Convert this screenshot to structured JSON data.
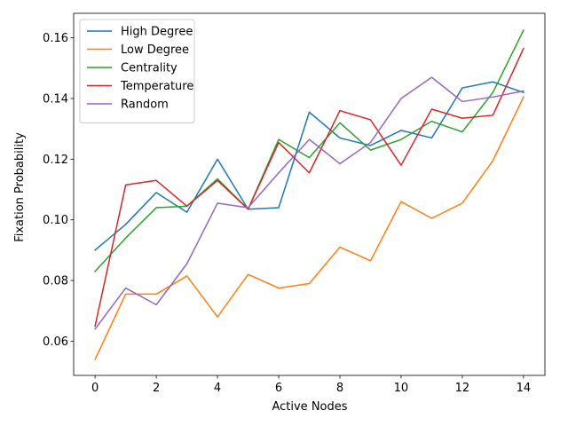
{
  "chart_data": {
    "type": "line",
    "title": "",
    "xlabel": "Active Nodes",
    "ylabel": "Fixation Probability",
    "x": [
      0,
      1,
      2,
      3,
      4,
      5,
      6,
      7,
      8,
      9,
      10,
      11,
      12,
      13,
      14
    ],
    "xlim": [
      -0.7,
      14.7
    ],
    "ylim": [
      0.0487,
      0.1681
    ],
    "xticks": [
      0,
      2,
      4,
      6,
      8,
      10,
      12,
      14
    ],
    "xtick_labels": [
      "0",
      "2",
      "4",
      "6",
      "8",
      "10",
      "12",
      "14"
    ],
    "yticks": [
      0.06,
      0.08,
      0.1,
      0.12,
      0.14,
      0.16
    ],
    "ytick_labels": [
      "0.06",
      "0.08",
      "0.10",
      "0.12",
      "0.14",
      "0.16"
    ],
    "grid": false,
    "legend_position": "top-left",
    "series": [
      {
        "name": "High Degree",
        "color": "#1f77b4",
        "values": [
          0.09,
          0.0985,
          0.109,
          0.1025,
          0.12,
          0.1035,
          0.104,
          0.1355,
          0.127,
          0.1245,
          0.1295,
          0.127,
          0.1435,
          0.1455,
          0.142
        ]
      },
      {
        "name": "Low Degree",
        "color": "#ff7f0e",
        "values": [
          0.054,
          0.0755,
          0.0755,
          0.0815,
          0.068,
          0.082,
          0.0775,
          0.079,
          0.091,
          0.0865,
          0.106,
          0.1005,
          0.1055,
          0.1195,
          0.1405
        ]
      },
      {
        "name": "Centrality",
        "color": "#2ca02c",
        "values": [
          0.083,
          0.094,
          0.104,
          0.1045,
          0.1135,
          0.1035,
          0.1265,
          0.1205,
          0.132,
          0.123,
          0.1265,
          0.1325,
          0.129,
          0.142,
          0.1625
        ]
      },
      {
        "name": "Temperature",
        "color": "#d62728",
        "values": [
          0.065,
          0.1115,
          0.113,
          0.1045,
          0.113,
          0.1035,
          0.1255,
          0.1155,
          0.136,
          0.133,
          0.118,
          0.1365,
          0.1335,
          0.1345,
          0.1565
        ]
      },
      {
        "name": "Random",
        "color": "#9467bd",
        "values": [
          0.064,
          0.0775,
          0.072,
          0.0855,
          0.1055,
          0.104,
          0.1155,
          0.1265,
          0.1185,
          0.1255,
          0.14,
          0.147,
          0.139,
          0.1405,
          0.1425
        ]
      }
    ]
  }
}
